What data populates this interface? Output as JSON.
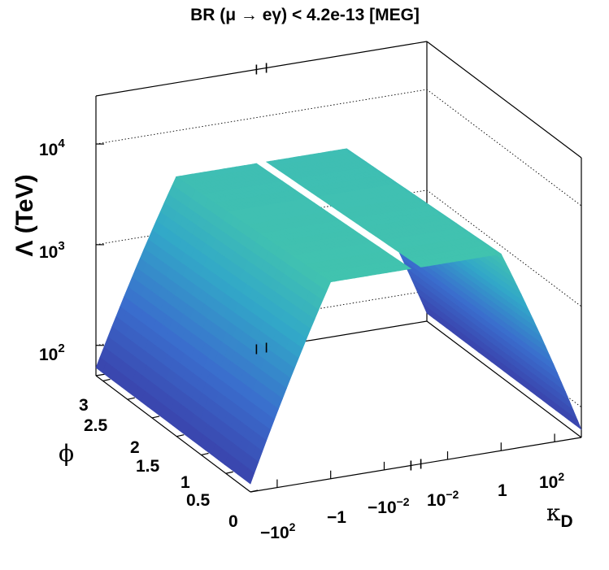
{
  "chart_data": {
    "type": "surface3d",
    "title": "BR (μ  → eγ) < 4.2e-13  [MEG]",
    "zlabel": "Λ (TeV)",
    "ylabel": "ϕ",
    "xlabel": "κ",
    "xlabel_sub": "D",
    "z_scale": "log",
    "z_range": [
      50,
      30000
    ],
    "x_range_log": [
      -3,
      3
    ],
    "y_range": [
      0,
      3.14
    ],
    "z_ticks": [
      {
        "base": "10",
        "exp": "2",
        "value": 100
      },
      {
        "base": "10",
        "exp": "3",
        "value": 1000
      },
      {
        "base": "10",
        "exp": "4",
        "value": 10000
      }
    ],
    "y_ticks": [
      "3",
      "2.5",
      "2",
      "1.5",
      "1",
      "0.5",
      "0"
    ],
    "x_ticks": [
      {
        "text": "−10",
        "sup": "2",
        "log": 2,
        "sign": -1
      },
      {
        "text": "−1",
        "sup": "",
        "log": 0,
        "sign": -1
      },
      {
        "text": "−10",
        "sup": "−2",
        "log": -2,
        "sign": -1
      },
      {
        "text": "10",
        "sup": "−2",
        "log": -2,
        "sign": 1
      },
      {
        "text": "1",
        "sup": "",
        "log": 0,
        "sign": 1
      },
      {
        "text": "10",
        "sup": "2",
        "log": 2,
        "sign": 1
      }
    ],
    "surface_ridge": {
      "plateau_z": [
        3500,
        4500
      ],
      "plateau_kappa": [
        -1,
        1
      ],
      "edge_z": [
        60,
        50
      ],
      "note": ""
    },
    "colormap": [
      "#3a3ea8",
      "#3a6dcd",
      "#32a8c8",
      "#45c9a9",
      "#79d6a0"
    ],
    "grid": true,
    "axis_break": true
  }
}
